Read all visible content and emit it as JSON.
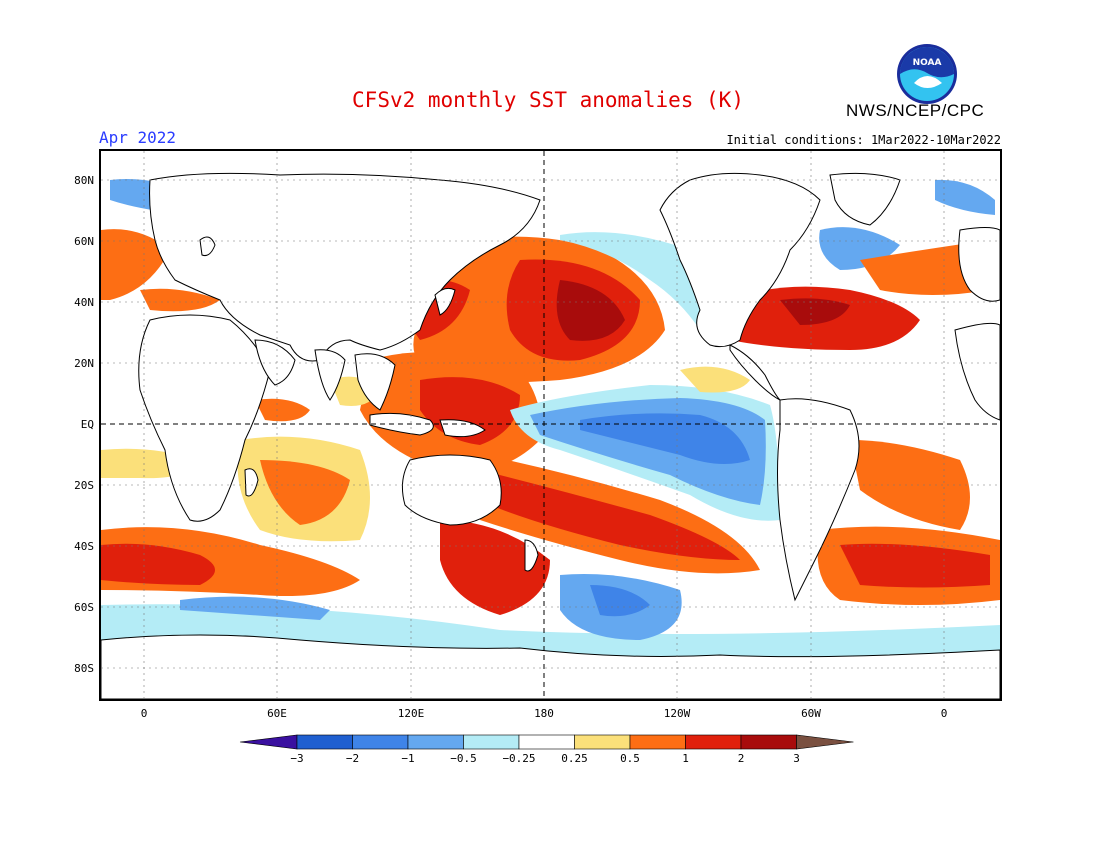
{
  "header": {
    "title": "CFSv2 monthly SST anomalies (K)",
    "agency": "NWS/NCEP/CPC",
    "logo_text": "NOAA",
    "month": "Apr 2022",
    "initial_conditions": "Initial conditions: 1Mar2022-10Mar2022"
  },
  "map": {
    "lat_labels": [
      "80N",
      "60N",
      "40N",
      "20N",
      "EQ",
      "20S",
      "40S",
      "60S",
      "80S"
    ],
    "lon_labels": [
      "0",
      "60E",
      "120E",
      "180",
      "120W",
      "60W",
      "0"
    ],
    "colors": {
      "land": "#ffffff",
      "coast": "#000000",
      "grid": "#777777"
    }
  },
  "colorbar": {
    "labels": [
      "-3",
      "-2",
      "-1",
      "-0.5",
      "-0.25",
      "0.25",
      "0.5",
      "1",
      "2",
      "3"
    ],
    "colors": [
      "#3a10a0",
      "#1f5fd0",
      "#3f84e8",
      "#64a8f0",
      "#b4ecf6",
      "#ffffff",
      "#fbe07a",
      "#fd6e14",
      "#e0200c",
      "#a80c0c",
      "#7a5040"
    ]
  }
}
